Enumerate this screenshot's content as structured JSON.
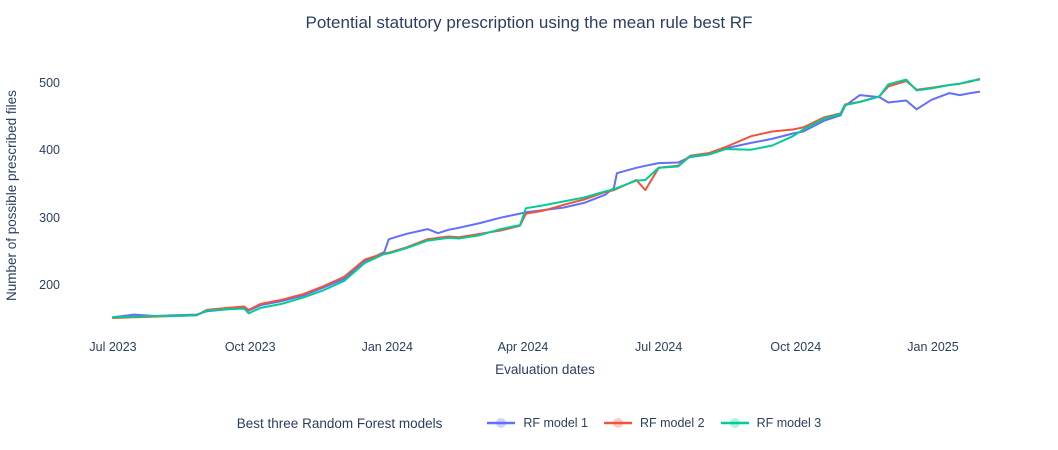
{
  "figure": {
    "title": "Potential statutory prescription using the mean rule best RF",
    "x_axis_title": "Evaluation dates",
    "y_axis_title": "Number of possible prescribed files",
    "legend_title": "Best three Random Forest models"
  },
  "colors": {
    "text": "#2a3f5f",
    "background": "#ffffff",
    "rf_model_1": "#636efa",
    "rf_model_2": "#ef553b",
    "rf_model_3": "#00cc96"
  },
  "chart_data": {
    "type": "line",
    "title": "Potential statutory prescription using the mean rule best RF",
    "xlabel": "Evaluation dates",
    "ylabel": "Number of possible prescribed files",
    "legend_title": "Best three Random Forest models",
    "legend_position": "bottom",
    "grid": false,
    "ylim": [
      130,
      535
    ],
    "y_ticks": [
      200,
      300,
      400,
      500
    ],
    "x_ticks": [
      {
        "label": "Jul 2023",
        "date": "2023-07-01"
      },
      {
        "label": "Oct 2023",
        "date": "2023-10-01"
      },
      {
        "label": "Jan 2024",
        "date": "2024-01-01"
      },
      {
        "label": "Apr 2024",
        "date": "2024-04-01"
      },
      {
        "label": "Jul 2024",
        "date": "2024-07-01"
      },
      {
        "label": "Oct 2024",
        "date": "2024-10-01"
      },
      {
        "label": "Jan 2025",
        "date": "2025-01-01"
      }
    ],
    "x": [
      "2023-07-01",
      "2023-07-15",
      "2023-07-29",
      "2023-08-12",
      "2023-08-26",
      "2023-09-02",
      "2023-09-16",
      "2023-09-27",
      "2023-09-30",
      "2023-10-08",
      "2023-10-22",
      "2023-11-05",
      "2023-11-19",
      "2023-12-03",
      "2023-12-17",
      "2023-12-30",
      "2024-01-02",
      "2024-01-14",
      "2024-01-28",
      "2024-02-04",
      "2024-02-11",
      "2024-02-18",
      "2024-03-03",
      "2024-03-17",
      "2024-03-30",
      "2024-04-03",
      "2024-04-14",
      "2024-04-28",
      "2024-05-12",
      "2024-05-26",
      "2024-06-01",
      "2024-06-03",
      "2024-06-16",
      "2024-06-22",
      "2024-07-01",
      "2024-07-14",
      "2024-07-22",
      "2024-08-04",
      "2024-08-15",
      "2024-09-01",
      "2024-09-15",
      "2024-09-29",
      "2024-10-06",
      "2024-10-20",
      "2024-10-31",
      "2024-11-03",
      "2024-11-13",
      "2024-11-26",
      "2024-12-02",
      "2024-12-14",
      "2024-12-21",
      "2024-12-31",
      "2025-01-12",
      "2025-01-19",
      "2025-01-26",
      "2025-02-01"
    ],
    "series": [
      {
        "name": "RF model 1",
        "color": "#636efa",
        "values": [
          152,
          156,
          154,
          155,
          156,
          161,
          164,
          166,
          162,
          170,
          176,
          184,
          196,
          209,
          235,
          249,
          268,
          276,
          283,
          277,
          282,
          285,
          292,
          300,
          306,
          308,
          311,
          315,
          322,
          334,
          344,
          366,
          374,
          377,
          381,
          382,
          390,
          394,
          403,
          411,
          417,
          425,
          428,
          444,
          452,
          466,
          482,
          479,
          471,
          474,
          461,
          475,
          485,
          482,
          485,
          487
        ]
      },
      {
        "name": "RF model 2",
        "color": "#ef553b",
        "values": [
          151,
          152,
          153,
          154,
          155,
          163,
          166,
          168,
          163,
          172,
          178,
          186,
          198,
          212,
          238,
          247,
          248,
          256,
          268,
          270,
          272,
          271,
          276,
          281,
          288,
          306,
          310,
          319,
          327,
          338,
          341,
          343,
          356,
          341,
          374,
          377,
          392,
          396,
          405,
          421,
          428,
          431,
          434,
          449,
          455,
          468,
          472,
          480,
          495,
          503,
          490,
          493,
          497,
          499,
          502,
          506
        ]
      },
      {
        "name": "RF model 3",
        "color": "#00cc96",
        "values": [
          152,
          153,
          154,
          154,
          155,
          162,
          164,
          165,
          158,
          166,
          172,
          181,
          192,
          206,
          233,
          246,
          247,
          255,
          266,
          268,
          270,
          269,
          274,
          283,
          289,
          314,
          318,
          324,
          330,
          339,
          342,
          344,
          355,
          356,
          374,
          376,
          391,
          394,
          402,
          401,
          407,
          421,
          431,
          447,
          454,
          467,
          472,
          480,
          498,
          505,
          489,
          492,
          497,
          499,
          503,
          505
        ]
      }
    ]
  }
}
